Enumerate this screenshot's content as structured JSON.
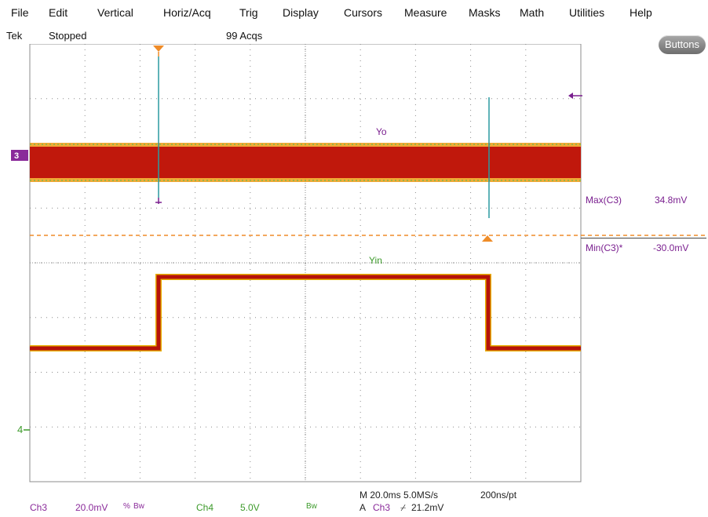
{
  "menu": [
    "File",
    "Edit",
    "Vertical",
    "Horiz/Acq",
    "Trig",
    "Display",
    "Cursors",
    "Measure",
    "Masks",
    "Math",
    "Utilities",
    "Help"
  ],
  "status": {
    "brand": "Tek",
    "state": "Stopped",
    "acqs": "99 Acqs"
  },
  "buttons_label": "Buttons",
  "waveform_labels": {
    "yo": "Yo",
    "yin": "Yin"
  },
  "ch4_marker": "4",
  "ch3_marker": "3",
  "measurements": [
    {
      "name": "Max(C3)",
      "value": "34.8mV"
    },
    {
      "name": "Min(C3)*",
      "value": "-30.0mV"
    }
  ],
  "bottom": {
    "ch3_label": "Ch3",
    "ch3_scale": "20.0mV",
    "ch3_coupling": "%",
    "ch3_bw": "Bw",
    "ch4_label": "Ch4",
    "ch4_scale": "5.0V",
    "ch4_bw": "Bw",
    "timebase": "M 20.0ms 5.0MS/s",
    "resolution": "200ns/pt",
    "trigger_prefix": "A",
    "trigger_source": "Ch3",
    "trigger_slope": "⌿",
    "trigger_level": "21.2mV"
  },
  "colors": {
    "grid": "#8c8c8c",
    "yo_core": "#c0180c",
    "yo_halo": "#f0a020",
    "yin_core": "#b5120a",
    "yin_edge": "#e8b000",
    "accent_purple": "#7a1f8f",
    "ch4_green": "#3c9a2a",
    "trigger_orange": "#ef8c28",
    "ch3_purple": "#8a2a9a"
  }
}
